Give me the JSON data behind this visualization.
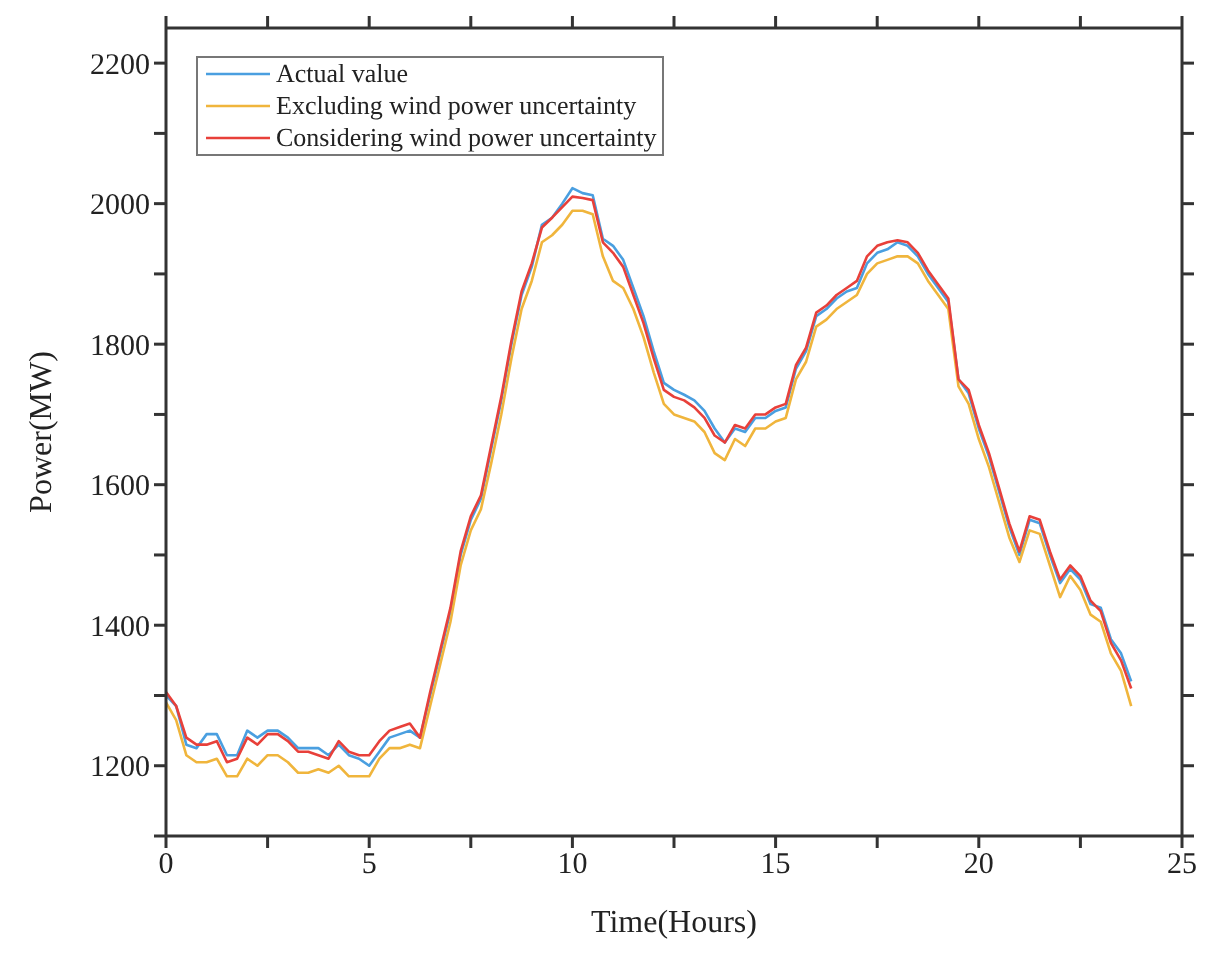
{
  "chart_data": {
    "type": "line",
    "xlabel": "Time(Hours)",
    "ylabel": "Power(MW)",
    "x": [
      0,
      0.25,
      0.5,
      0.75,
      1,
      1.25,
      1.5,
      1.75,
      2,
      2.25,
      2.5,
      2.75,
      3,
      3.25,
      3.5,
      3.75,
      4,
      4.25,
      4.5,
      4.75,
      5,
      5.25,
      5.5,
      5.75,
      6,
      6.25,
      6.5,
      6.75,
      7,
      7.25,
      7.5,
      7.75,
      8,
      8.25,
      8.5,
      8.75,
      9,
      9.25,
      9.5,
      9.75,
      10,
      10.25,
      10.5,
      10.75,
      11,
      11.25,
      11.5,
      11.75,
      12,
      12.25,
      12.5,
      12.75,
      13,
      13.25,
      13.5,
      13.75,
      14,
      14.25,
      14.5,
      14.75,
      15,
      15.25,
      15.5,
      15.75,
      16,
      16.25,
      16.5,
      16.75,
      17,
      17.25,
      17.5,
      17.75,
      18,
      18.25,
      18.5,
      18.75,
      19,
      19.25,
      19.5,
      19.75,
      20,
      20.25,
      20.5,
      20.75,
      21,
      21.25,
      21.5,
      21.75,
      22,
      22.25,
      22.5,
      22.75,
      23,
      23.25,
      23.5,
      23.75
    ],
    "series": [
      {
        "name": "Actual value",
        "color": "#4a9fe0",
        "values": [
          1300,
          1285,
          1230,
          1225,
          1245,
          1245,
          1215,
          1215,
          1250,
          1240,
          1250,
          1250,
          1240,
          1225,
          1225,
          1225,
          1215,
          1230,
          1215,
          1210,
          1200,
          1220,
          1240,
          1245,
          1250,
          1240,
          1300,
          1360,
          1420,
          1500,
          1550,
          1580,
          1650,
          1720,
          1800,
          1870,
          1910,
          1970,
          1980,
          2000,
          2022,
          2015,
          2012,
          1950,
          1940,
          1920,
          1880,
          1840,
          1790,
          1745,
          1735,
          1728,
          1720,
          1705,
          1680,
          1660,
          1680,
          1675,
          1695,
          1695,
          1705,
          1710,
          1765,
          1790,
          1840,
          1850,
          1865,
          1875,
          1880,
          1915,
          1930,
          1935,
          1945,
          1940,
          1925,
          1900,
          1880,
          1860,
          1750,
          1730,
          1680,
          1640,
          1590,
          1540,
          1500,
          1550,
          1545,
          1500,
          1460,
          1480,
          1465,
          1430,
          1425,
          1380,
          1360,
          1320
        ]
      },
      {
        "name": "Excluding wind power uncertainty",
        "color": "#f0b53c",
        "values": [
          1290,
          1265,
          1215,
          1205,
          1205,
          1210,
          1185,
          1185,
          1210,
          1200,
          1215,
          1215,
          1205,
          1190,
          1190,
          1195,
          1190,
          1200,
          1185,
          1185,
          1185,
          1210,
          1225,
          1225,
          1230,
          1225,
          1285,
          1345,
          1405,
          1485,
          1535,
          1565,
          1630,
          1700,
          1780,
          1850,
          1890,
          1945,
          1955,
          1970,
          1990,
          1990,
          1985,
          1925,
          1890,
          1880,
          1850,
          1810,
          1760,
          1715,
          1700,
          1695,
          1690,
          1675,
          1645,
          1635,
          1665,
          1655,
          1680,
          1680,
          1690,
          1695,
          1750,
          1775,
          1825,
          1835,
          1850,
          1860,
          1870,
          1900,
          1915,
          1920,
          1925,
          1925,
          1915,
          1890,
          1870,
          1850,
          1740,
          1715,
          1665,
          1625,
          1575,
          1525,
          1490,
          1535,
          1530,
          1485,
          1440,
          1470,
          1450,
          1415,
          1405,
          1360,
          1335,
          1285
        ]
      },
      {
        "name": "Considering wind power uncertainty",
        "color": "#e8403a",
        "values": [
          1305,
          1285,
          1240,
          1230,
          1230,
          1235,
          1205,
          1210,
          1240,
          1230,
          1245,
          1245,
          1235,
          1220,
          1220,
          1215,
          1210,
          1235,
          1220,
          1215,
          1215,
          1235,
          1250,
          1255,
          1260,
          1240,
          1305,
          1365,
          1425,
          1505,
          1555,
          1585,
          1655,
          1725,
          1805,
          1875,
          1915,
          1966,
          1980,
          1995,
          2010,
          2008,
          2005,
          1945,
          1930,
          1910,
          1870,
          1830,
          1780,
          1735,
          1725,
          1720,
          1710,
          1695,
          1670,
          1660,
          1685,
          1680,
          1700,
          1700,
          1710,
          1715,
          1770,
          1795,
          1845,
          1855,
          1870,
          1880,
          1890,
          1925,
          1940,
          1945,
          1948,
          1945,
          1930,
          1905,
          1885,
          1865,
          1750,
          1735,
          1685,
          1645,
          1595,
          1545,
          1505,
          1555,
          1550,
          1505,
          1465,
          1485,
          1470,
          1435,
          1420,
          1375,
          1350,
          1310
        ]
      }
    ],
    "xlim": [
      0,
      25
    ],
    "xticks": [
      0,
      {
        "value": 2.5,
        "label": null
      },
      5,
      {
        "value": 7.5,
        "label": null
      },
      10,
      {
        "value": 12.5,
        "label": null
      },
      15,
      {
        "value": 17.5,
        "label": null
      },
      20,
      {
        "value": 22.5,
        "label": null
      },
      25
    ],
    "ylim": [
      1100,
      2250
    ],
    "yticks": [
      {
        "value": 1100,
        "label": null
      },
      1200,
      {
        "value": 1300,
        "label": null
      },
      1400,
      {
        "value": 1500,
        "label": null
      },
      1600,
      {
        "value": 1700,
        "label": null
      },
      1800,
      {
        "value": 1900,
        "label": null
      },
      2000,
      {
        "value": 2100,
        "label": null
      },
      2200
    ],
    "grid": false,
    "legend": "top left",
    "marker": "none",
    "line_style": "solid"
  }
}
